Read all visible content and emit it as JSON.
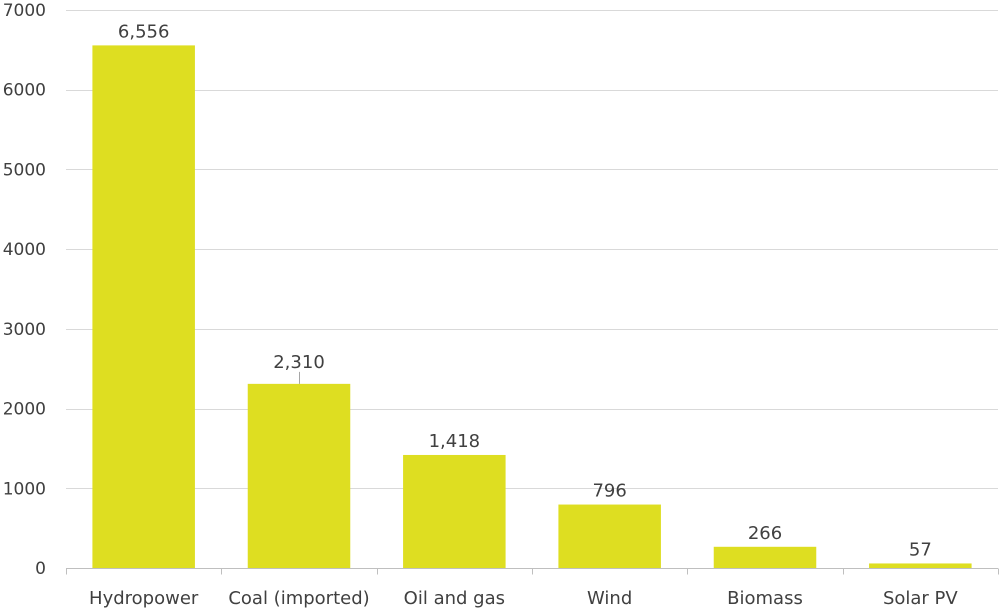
{
  "chart_data": {
    "type": "bar",
    "categories": [
      "Hydropower",
      "Coal (imported)",
      "Oil and gas",
      "Wind",
      "Biomass",
      "Solar PV"
    ],
    "values": [
      6556,
      2310,
      1418,
      796,
      266,
      57
    ],
    "value_labels": [
      "6,556",
      "2,310",
      "1,418",
      "796",
      "266",
      "57"
    ],
    "ylim": [
      0,
      7000
    ],
    "yticks": [
      0,
      1000,
      2000,
      3000,
      4000,
      5000,
      6000,
      7000
    ],
    "ytick_labels": [
      "0",
      "1000",
      "2000",
      "3000",
      "4000",
      "5000",
      "6000",
      "7000"
    ],
    "title": "",
    "xlabel": "",
    "ylabel": "",
    "grid": true,
    "legend": "none",
    "bar_color": "#dede21"
  }
}
